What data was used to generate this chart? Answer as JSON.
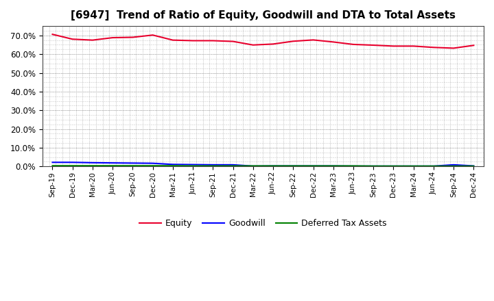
{
  "title": "[6947]  Trend of Ratio of Equity, Goodwill and DTA to Total Assets",
  "x_labels": [
    "Sep-19",
    "Dec-19",
    "Mar-20",
    "Jun-20",
    "Sep-20",
    "Dec-20",
    "Mar-21",
    "Jun-21",
    "Sep-21",
    "Dec-21",
    "Mar-22",
    "Jun-22",
    "Sep-22",
    "Dec-22",
    "Mar-23",
    "Jun-23",
    "Sep-23",
    "Dec-23",
    "Mar-24",
    "Jun-24",
    "Sep-24",
    "Dec-24"
  ],
  "equity": [
    0.706,
    0.68,
    0.675,
    0.688,
    0.69,
    0.702,
    0.675,
    0.672,
    0.672,
    0.668,
    0.649,
    0.654,
    0.669,
    0.676,
    0.665,
    0.652,
    0.648,
    0.643,
    0.643,
    0.636,
    0.632,
    0.647
  ],
  "goodwill": [
    0.022,
    0.022,
    0.02,
    0.019,
    0.018,
    0.017,
    0.011,
    0.01,
    0.009,
    0.009,
    0.002,
    0.003,
    0.003,
    0.003,
    0.003,
    0.002,
    0.002,
    0.002,
    0.002,
    0.002,
    0.009,
    0.003
  ],
  "dta": [
    0.004,
    0.004,
    0.004,
    0.004,
    0.004,
    0.004,
    0.004,
    0.003,
    0.003,
    0.003,
    0.003,
    0.003,
    0.003,
    0.003,
    0.003,
    0.003,
    0.002,
    0.002,
    0.002,
    0.002,
    0.002,
    0.002
  ],
  "equity_color": "#e8002d",
  "goodwill_color": "#0000ff",
  "dta_color": "#008000",
  "bg_color": "#ffffff",
  "grid_color": "#999999",
  "ylim": [
    0.0,
    0.75
  ],
  "yticks": [
    0.0,
    0.1,
    0.2,
    0.3,
    0.4,
    0.5,
    0.6,
    0.7
  ],
  "legend_labels": [
    "Equity",
    "Goodwill",
    "Deferred Tax Assets"
  ]
}
